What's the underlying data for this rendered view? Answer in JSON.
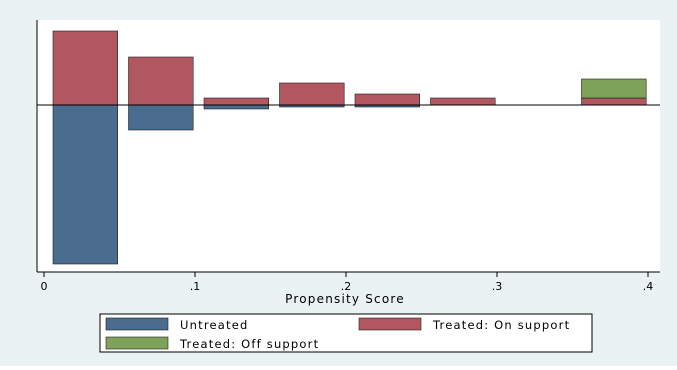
{
  "chart_data": {
    "type": "bar",
    "subtype": "mirrored-histogram",
    "xlabel": "Propensity Score",
    "xlim": [
      0,
      0.4
    ],
    "x_ticks": [
      0,
      0.1,
      0.2,
      0.3,
      0.4
    ],
    "x_tick_labels": [
      "0",
      ".1",
      ".2",
      ".3",
      ".4"
    ],
    "bin_width": 0.05,
    "legend_position": "bottom",
    "grid": false,
    "series": [
      {
        "name": "Untreated",
        "color": "#4a6c8f",
        "direction": "down",
        "bins": [
          0.0,
          0.05,
          0.1,
          0.15,
          0.2,
          0.25,
          0.3,
          0.35
        ],
        "values": [
          159,
          25,
          4,
          2,
          2,
          0,
          0,
          0
        ]
      },
      {
        "name": "Treated: On support",
        "color": "#b2575f",
        "direction": "up",
        "bins": [
          0.0,
          0.05,
          0.1,
          0.15,
          0.2,
          0.25,
          0.3,
          0.35
        ],
        "values": [
          74,
          48,
          7,
          22,
          11,
          7,
          0,
          7
        ]
      },
      {
        "name": "Treated: Off support",
        "color": "#7ea25a",
        "direction": "up",
        "stacked_on": "Treated: On support",
        "bins": [
          0.0,
          0.05,
          0.1,
          0.15,
          0.2,
          0.25,
          0.3,
          0.35
        ],
        "values": [
          0,
          0,
          0,
          0,
          0,
          0,
          0,
          19
        ]
      }
    ]
  }
}
